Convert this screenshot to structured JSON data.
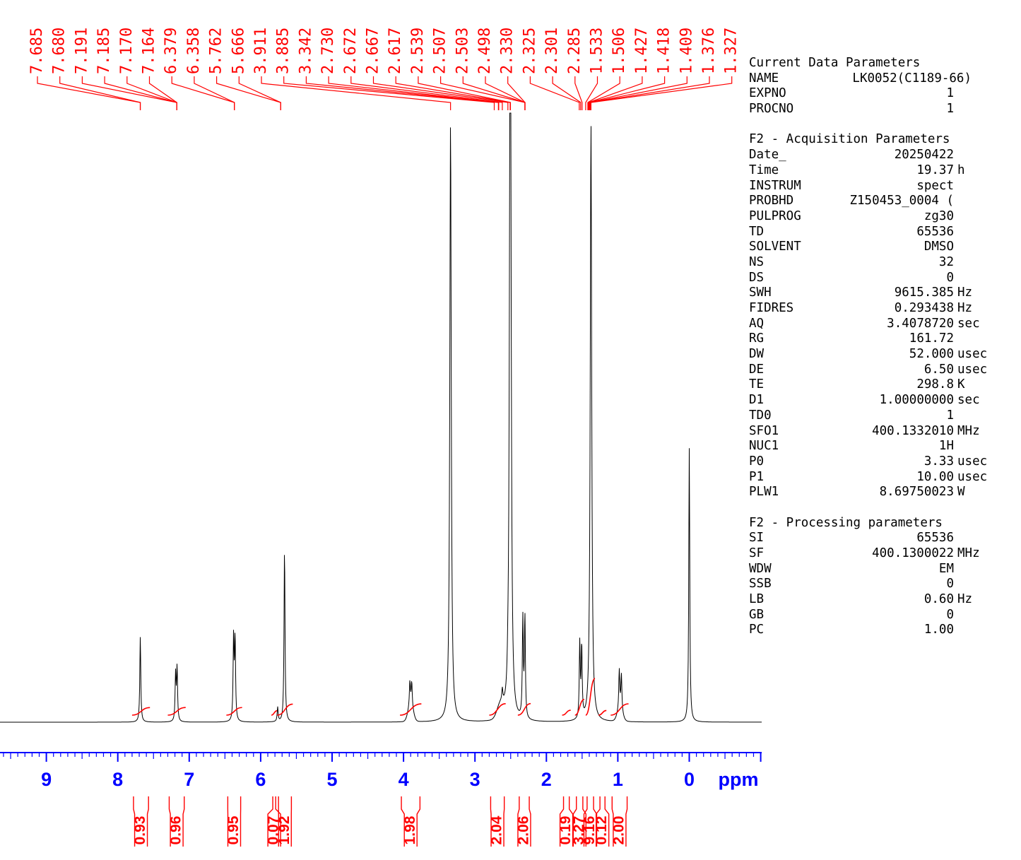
{
  "chart_data": {
    "type": "line",
    "title": "",
    "xlabel": "ppm",
    "ylabel": "",
    "x_reversed": true,
    "xlim": [
      10.6,
      -1.0
    ],
    "x_ticks": [
      "9",
      "8",
      "7",
      "6",
      "5",
      "4",
      "3",
      "2",
      "1",
      "0"
    ],
    "x_tick_values": [
      9,
      8,
      7,
      6,
      5,
      4,
      3,
      2,
      1,
      0
    ],
    "grid": false,
    "legend": "none",
    "colors": {
      "spectrum": "#000000",
      "annotation": "#ff0000",
      "axis": "#0000ff"
    },
    "peak_labels": [
      "7.685",
      "7.680",
      "7.191",
      "7.185",
      "7.170",
      "7.164",
      "6.379",
      "6.358",
      "5.762",
      "5.666",
      "3.911",
      "3.885",
      "3.342",
      "2.730",
      "2.672",
      "2.667",
      "2.617",
      "2.539",
      "2.507",
      "2.503",
      "2.498",
      "2.330",
      "2.325",
      "2.301",
      "2.285",
      "1.533",
      "1.506",
      "1.427",
      "1.418",
      "1.409",
      "1.376",
      "1.327"
    ],
    "peak_positions": [
      7.685,
      7.685,
      7.175,
      7.175,
      7.175,
      7.175,
      6.368,
      6.368,
      5.72,
      5.72,
      3.342,
      2.73,
      2.672,
      2.667,
      2.617,
      2.539,
      2.507,
      2.503,
      2.3,
      2.3,
      2.3,
      2.3,
      1.54,
      1.52,
      1.5,
      1.45,
      1.42,
      1.41,
      1.4,
      1.39,
      1.38,
      1.376
    ],
    "peaks": [
      {
        "ppm": 7.685,
        "height": 0.142
      },
      {
        "ppm": 7.191,
        "height": 0.078
      },
      {
        "ppm": 7.17,
        "height": 0.088
      },
      {
        "ppm": 6.379,
        "height": 0.139
      },
      {
        "ppm": 6.358,
        "height": 0.136
      },
      {
        "ppm": 5.762,
        "height": 0.024
      },
      {
        "ppm": 5.666,
        "height": 0.29
      },
      {
        "ppm": 3.911,
        "height": 0.04
      },
      {
        "ppm": 3.885,
        "height": 0.04
      },
      {
        "ppm": 3.342,
        "height": 1.0
      },
      {
        "ppm": 2.617,
        "height": 0.02
      },
      {
        "ppm": 2.539,
        "height": 0.018
      },
      {
        "ppm": 2.507,
        "height": 0.846
      },
      {
        "ppm": 2.503,
        "height": 0.62
      },
      {
        "ppm": 2.33,
        "height": 0.165
      },
      {
        "ppm": 2.301,
        "height": 0.17
      },
      {
        "ppm": 1.533,
        "height": 0.125
      },
      {
        "ppm": 1.506,
        "height": 0.12
      },
      {
        "ppm": 1.376,
        "height": 1.0
      },
      {
        "ppm": 0.98,
        "height": 0.066
      },
      {
        "ppm": 0.95,
        "height": 0.06
      },
      {
        "ppm": 0.0,
        "height": 0.456
      }
    ],
    "integrals": [
      {
        "label": "0.93",
        "from": 7.8,
        "to": 7.55
      },
      {
        "label": "0.96",
        "from": 7.3,
        "to": 7.05
      },
      {
        "label": "0.95",
        "from": 6.48,
        "to": 6.26
      },
      {
        "label": "0.07",
        "from": 5.85,
        "to": 5.77
      },
      {
        "label": "1.92",
        "from": 5.77,
        "to": 5.55
      },
      {
        "label": "1.98",
        "from": 4.05,
        "to": 3.75
      },
      {
        "label": "2.04",
        "from": 2.8,
        "to": 2.57
      },
      {
        "label": "2.06",
        "from": 2.4,
        "to": 2.22
      },
      {
        "label": "0.19",
        "from": 1.78,
        "to": 1.66
      },
      {
        "label": "3.27",
        "from": 1.6,
        "to": 1.47
      },
      {
        "label": "9.16",
        "from": 1.45,
        "to": 1.32
      },
      {
        "label": "0.12",
        "from": 1.27,
        "to": 1.16
      },
      {
        "label": "2.00",
        "from": 1.1,
        "to": 0.85
      }
    ]
  },
  "params": {
    "current": {
      "title": "Current Data Parameters",
      "rows": [
        {
          "k": "NAME",
          "v": "LK0052(C1189-66)",
          "u": ""
        },
        {
          "k": "EXPNO",
          "v": "1",
          "u": ""
        },
        {
          "k": "PROCNO",
          "v": "1",
          "u": ""
        }
      ]
    },
    "acq": {
      "title": "F2 - Acquisition Parameters",
      "rows": [
        {
          "k": "Date_",
          "v": "20250422",
          "u": ""
        },
        {
          "k": "Time",
          "v": "19.37",
          "u": "h"
        },
        {
          "k": "INSTRUM",
          "v": "spect",
          "u": ""
        },
        {
          "k": "PROBHD",
          "v": "Z150453_0004 (",
          "u": ""
        },
        {
          "k": "PULPROG",
          "v": "zg30",
          "u": ""
        },
        {
          "k": "TD",
          "v": "65536",
          "u": ""
        },
        {
          "k": "SOLVENT",
          "v": "DMSO",
          "u": ""
        },
        {
          "k": "NS",
          "v": "32",
          "u": ""
        },
        {
          "k": "DS",
          "v": "0",
          "u": ""
        },
        {
          "k": "SWH",
          "v": "9615.385",
          "u": "Hz"
        },
        {
          "k": "FIDRES",
          "v": "0.293438",
          "u": "Hz"
        },
        {
          "k": "AQ",
          "v": "3.4078720",
          "u": "sec"
        },
        {
          "k": "RG",
          "v": "161.72",
          "u": ""
        },
        {
          "k": "DW",
          "v": "52.000",
          "u": "usec"
        },
        {
          "k": "DE",
          "v": "6.50",
          "u": "usec"
        },
        {
          "k": "TE",
          "v": "298.8",
          "u": "K"
        },
        {
          "k": "D1",
          "v": "1.00000000",
          "u": "sec"
        },
        {
          "k": "TD0",
          "v": "1",
          "u": ""
        },
        {
          "k": "SFO1",
          "v": "400.1332010",
          "u": "MHz"
        },
        {
          "k": "NUC1",
          "v": "1H",
          "u": ""
        },
        {
          "k": "P0",
          "v": "3.33",
          "u": "usec"
        },
        {
          "k": "P1",
          "v": "10.00",
          "u": "usec"
        },
        {
          "k": "PLW1",
          "v": "8.69750023",
          "u": "W"
        }
      ]
    },
    "proc": {
      "title": "F2 - Processing parameters",
      "rows": [
        {
          "k": "SI",
          "v": "65536",
          "u": ""
        },
        {
          "k": "SF",
          "v": "400.1300022",
          "u": "MHz"
        },
        {
          "k": "WDW",
          "v": "EM",
          "u": ""
        },
        {
          "k": "SSB",
          "v": "0",
          "u": ""
        },
        {
          "k": "LB",
          "v": "0.60",
          "u": "Hz"
        },
        {
          "k": "GB",
          "v": "0",
          "u": ""
        },
        {
          "k": "PC",
          "v": "1.00",
          "u": ""
        }
      ]
    }
  }
}
